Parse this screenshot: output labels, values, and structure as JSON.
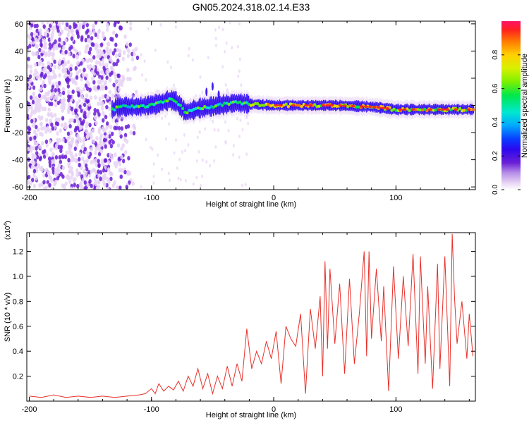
{
  "title": "GN05.2024.318.02.14.E33",
  "colors": {
    "snr_line": "#e8302a",
    "axis": "#000000",
    "background": "#ffffff"
  },
  "chart_data": [
    {
      "type": "heatmap",
      "name": "spectrogram",
      "xlabel": "Height of straight line (km)",
      "ylabel": "Frequency (Hz)",
      "xlim": [
        -202,
        165
      ],
      "ylim": [
        -62,
        62
      ],
      "x_ticks": [
        -200,
        -100,
        0,
        100
      ],
      "y_ticks": [
        -60,
        -40,
        -20,
        0,
        20,
        40,
        60
      ],
      "colorbar": {
        "label": "Normalized spectral amplitude",
        "range": [
          0.0,
          1.0
        ],
        "ticks": [
          "0.0",
          "0.2",
          "0.4",
          "0.6",
          "0.8"
        ],
        "colormap": [
          "#ffffff",
          "#e8d4f4",
          "#b68ee8",
          "#6a1fd6",
          "#2d08f0",
          "#0a3cff",
          "#00a8ff",
          "#00e8d0",
          "#00e84a",
          "#7cf000",
          "#d8f000",
          "#ffd000",
          "#ff7a00",
          "#ff2020",
          "#ff1468"
        ]
      },
      "signal_band": {
        "description_points": [
          [
            -130,
            -1
          ],
          [
            -110,
            -1
          ],
          [
            -95,
            1
          ],
          [
            -85,
            4
          ],
          [
            -80,
            3
          ],
          [
            -72,
            -5
          ],
          [
            -60,
            -2
          ],
          [
            -45,
            0
          ],
          [
            -30,
            2
          ],
          [
            -20,
            1
          ],
          [
            0,
            0
          ],
          [
            20,
            0
          ],
          [
            50,
            0
          ],
          [
            80,
            -1
          ],
          [
            100,
            -3
          ],
          [
            130,
            -3
          ],
          [
            163,
            -3
          ]
        ],
        "noise_region_end_km": -110
      }
    },
    {
      "type": "line",
      "name": "snr",
      "xlabel": "Height of straight line (km)",
      "ylabel": "SNR (10 * v/v)",
      "multiplier_label": "(x10",
      "multiplier_exp": "4",
      "multiplier_close": ")",
      "xlim": [
        -202,
        165
      ],
      "ylim": [
        0,
        1.35
      ],
      "x_ticks": [
        -200,
        -100,
        0,
        100
      ],
      "y_ticks": [
        0.2,
        0.4,
        0.6,
        0.8,
        1.0,
        1.2
      ],
      "y_tick_labels": [
        "0.2",
        "0.4",
        "0.6",
        "0.8",
        "1.0",
        "1.2"
      ],
      "series": [
        {
          "name": "SNR",
          "x": [
            -200,
            -190,
            -180,
            -170,
            -160,
            -150,
            -140,
            -130,
            -120,
            -110,
            -105,
            -100,
            -97,
            -94,
            -90,
            -86,
            -82,
            -78,
            -74,
            -70,
            -66,
            -62,
            -58,
            -54,
            -50,
            -46,
            -42,
            -38,
            -34,
            -30,
            -26,
            -22,
            -18,
            -14,
            -10,
            -6,
            -2,
            2,
            6,
            10,
            14,
            18,
            22,
            26,
            30,
            34,
            38,
            40,
            42,
            44,
            46,
            50,
            54,
            58,
            62,
            66,
            70,
            74,
            76,
            78,
            80,
            84,
            88,
            90,
            94,
            98,
            102,
            106,
            110,
            114,
            118,
            120,
            124,
            126,
            130,
            134,
            136,
            140,
            144,
            146,
            148,
            150,
            154,
            158,
            160,
            163
          ],
          "values": [
            0.04,
            0.03,
            0.05,
            0.03,
            0.04,
            0.03,
            0.04,
            0.03,
            0.04,
            0.05,
            0.06,
            0.1,
            0.06,
            0.14,
            0.08,
            0.12,
            0.09,
            0.16,
            0.08,
            0.2,
            0.12,
            0.26,
            0.1,
            0.22,
            0.06,
            0.2,
            0.1,
            0.28,
            0.12,
            0.3,
            0.16,
            0.58,
            0.26,
            0.4,
            0.3,
            0.48,
            0.34,
            0.56,
            0.14,
            0.6,
            0.5,
            0.44,
            0.7,
            0.06,
            0.74,
            0.42,
            0.84,
            0.2,
            1.12,
            0.42,
            1.06,
            0.46,
            0.94,
            0.22,
            0.98,
            0.3,
            0.7,
            1.2,
            0.36,
            1.2,
            0.5,
            1.06,
            0.48,
            0.92,
            0.08,
            1.08,
            0.34,
            1.0,
            0.44,
            1.18,
            0.22,
            1.16,
            0.3,
            0.92,
            0.1,
            1.1,
            0.26,
            1.16,
            0.12,
            1.34,
            0.82,
            0.46,
            0.8,
            0.34,
            0.7,
            0.36
          ]
        }
      ]
    }
  ]
}
